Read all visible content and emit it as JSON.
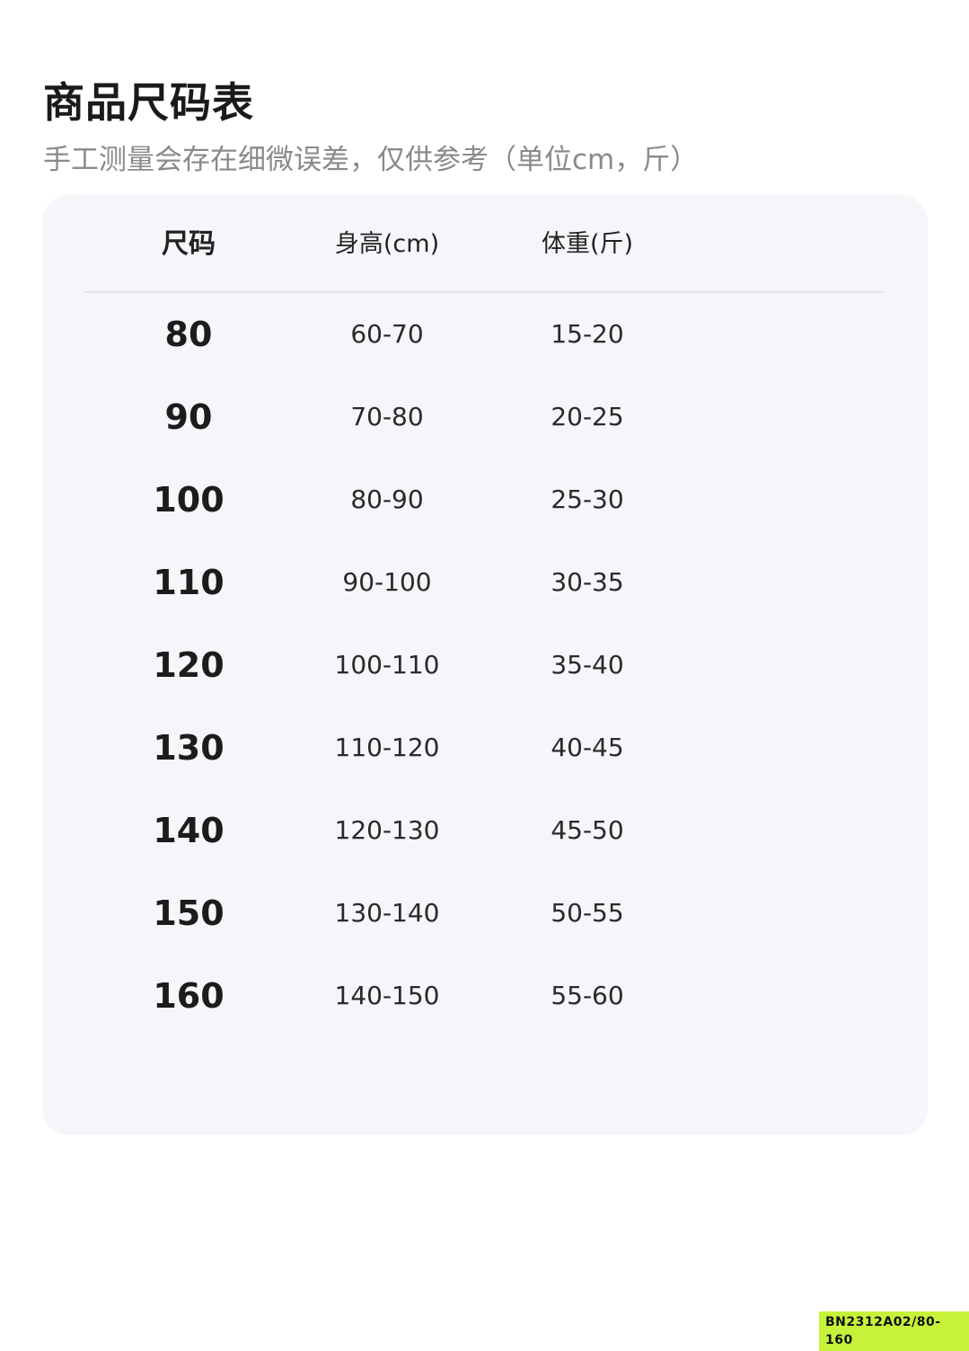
{
  "title": "商品尺码表",
  "subtitle": "手工测量会存在细微误差，仅供参考（单位cm，斤）",
  "table": {
    "headers": [
      "尺码",
      "身高(cm)",
      "体重(斤)"
    ],
    "rows": [
      [
        "80",
        "60-70",
        "15-20"
      ],
      [
        "90",
        "70-80",
        "20-25"
      ],
      [
        "100",
        "80-90",
        "25-30"
      ],
      [
        "110",
        "90-100",
        "30-35"
      ],
      [
        "120",
        "100-110",
        "35-40"
      ],
      [
        "130",
        "110-120",
        "40-45"
      ],
      [
        "140",
        "120-130",
        "45-50"
      ],
      [
        "150",
        "130-140",
        "50-55"
      ],
      [
        "160",
        "140-150",
        "55-60"
      ]
    ]
  },
  "product_code": "BN2312A02/80-160",
  "colors": {
    "card_bg": "#f4f6f9",
    "code_badge": "#c6f23a"
  }
}
